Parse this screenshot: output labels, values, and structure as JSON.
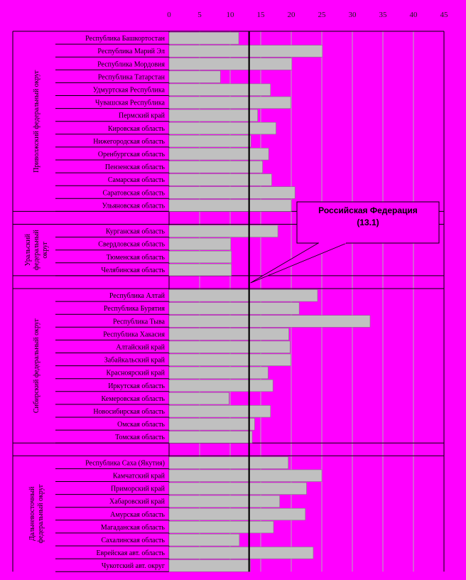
{
  "chart_data": {
    "type": "bar",
    "orientation": "horizontal",
    "xlim": [
      0,
      45
    ],
    "x_ticks": [
      "0",
      "5",
      "10",
      "15",
      "20",
      "25",
      "30",
      "35",
      "40",
      "45"
    ],
    "grid": true,
    "bar_color": "#c0c0c0",
    "background_color": "#ff00ff",
    "reference": {
      "value": 13.1,
      "label_line1": "Российская Федерация",
      "label_line2": "(13.1)"
    },
    "groups": [
      {
        "label": "Приволжский федеральный округ",
        "rows": [
          {
            "label": "Республика Башкортостан",
            "value": 11.4
          },
          {
            "label": "Республика Марий Эл",
            "value": 25.1
          },
          {
            "label": "Республика Мордовия",
            "value": 20.1
          },
          {
            "label": "Республика Татарстан",
            "value": 8.4
          },
          {
            "label": "Удмуртская Республика",
            "value": 16.6
          },
          {
            "label": "Чувашская Республика",
            "value": 19.9
          },
          {
            "label": "Пермский край",
            "value": 14.5
          },
          {
            "label": "Кировская область",
            "value": 17.5
          },
          {
            "label": "Нижегородская область",
            "value": 13.4
          },
          {
            "label": "Оренбургская область",
            "value": 16.3
          },
          {
            "label": "Пензенская область",
            "value": 15.3
          },
          {
            "label": "Самарская область",
            "value": 16.8
          },
          {
            "label": "Саратовская область",
            "value": 20.6
          },
          {
            "label": "Ульяновская область",
            "value": 20.0
          }
        ]
      },
      {
        "label": "Уральский федеральный округ",
        "label_lines": [
          "Уральский",
          "федеральный",
          "округ"
        ],
        "rows": [
          {
            "label": "Курганская область",
            "value": 17.8
          },
          {
            "label": "Свердловская область",
            "value": 10.1
          },
          {
            "label": "Тюменская область",
            "value": 10.2
          },
          {
            "label": "Челябинская область",
            "value": 10.2
          }
        ]
      },
      {
        "label": "Сибирский федеральный округ",
        "rows": [
          {
            "label": "Республика Алтай",
            "value": 24.3
          },
          {
            "label": "Республика Бурятия",
            "value": 21.3
          },
          {
            "label": "Республика Тыва",
            "value": 32.9
          },
          {
            "label": "Республика Хакасия",
            "value": 19.6
          },
          {
            "label": "Алтайский край",
            "value": 19.8
          },
          {
            "label": "Забайкальский край",
            "value": 19.9
          },
          {
            "label": "Красноярский край",
            "value": 16.2
          },
          {
            "label": "Иркутская область",
            "value": 17.0
          },
          {
            "label": "Кемеровская область",
            "value": 9.8
          },
          {
            "label": "Новосибирская область",
            "value": 16.6
          },
          {
            "label": "Омская область",
            "value": 14.0
          },
          {
            "label": "Томская область",
            "value": 13.6
          }
        ]
      },
      {
        "label": "Дальневосточный федеральный округ",
        "label_lines": [
          "Дальневосточный",
          "федеральный округ"
        ],
        "rows": [
          {
            "label": "Республика Саха (Якутия)",
            "value": 19.5
          },
          {
            "label": "Камчатский край",
            "value": 25.0
          },
          {
            "label": "Приморский край",
            "value": 22.5
          },
          {
            "label": "Хабаровский край",
            "value": 18.1
          },
          {
            "label": "Амурская область",
            "value": 22.3
          },
          {
            "label": "Магаданская область",
            "value": 17.1
          },
          {
            "label": "Сахалинская область",
            "value": 11.5
          },
          {
            "label": "Еврейская авт. область",
            "value": 23.6
          },
          {
            "label": "Чукотский авт. округ",
            "value": 13.3
          }
        ]
      }
    ]
  }
}
